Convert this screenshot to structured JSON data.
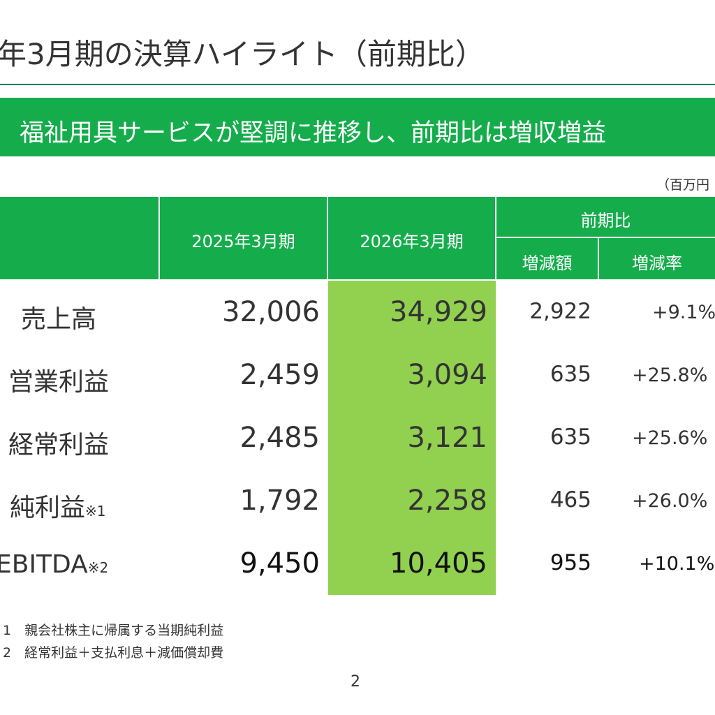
{
  "title": "年3月期の決算ハイライト（前期比）",
  "banner": "福祉用具サービスが堅調に推移し、前期比は増収増益",
  "unit": "（百万円",
  "header": {
    "col1": "2025年3月期",
    "col2": "2026年3月期",
    "yoy": "前期比",
    "diff": "増減額",
    "rate": "増減率"
  },
  "rows": [
    {
      "label": "売上高",
      "note": "",
      "prev": "32,006",
      "curr": "34,929",
      "diff": "2,922",
      "rate": "+9.1%"
    },
    {
      "label": "営業利益",
      "note": "",
      "prev": "2,459",
      "curr": "3,094",
      "diff": "635",
      "rate": "+25.8%"
    },
    {
      "label": "経常利益",
      "note": "",
      "prev": "2,485",
      "curr": "3,121",
      "diff": "635",
      "rate": "+25.6%"
    },
    {
      "label": "純利益",
      "note": "※1",
      "prev": "1,792",
      "curr": "2,258",
      "diff": "465",
      "rate": "+26.0%"
    },
    {
      "label": "EBITDA",
      "note": "※2",
      "prev": "9,450",
      "curr": "10,405",
      "diff": "955",
      "rate": "+10.1%"
    }
  ],
  "footnotes": [
    "1　親会社株主に帰属する当期純利益",
    "2　経常利益＋支払利息＋減価償却費"
  ],
  "page_number": "2",
  "colors": {
    "accent_green": "#15ad4c",
    "highlight": "#92d050"
  }
}
